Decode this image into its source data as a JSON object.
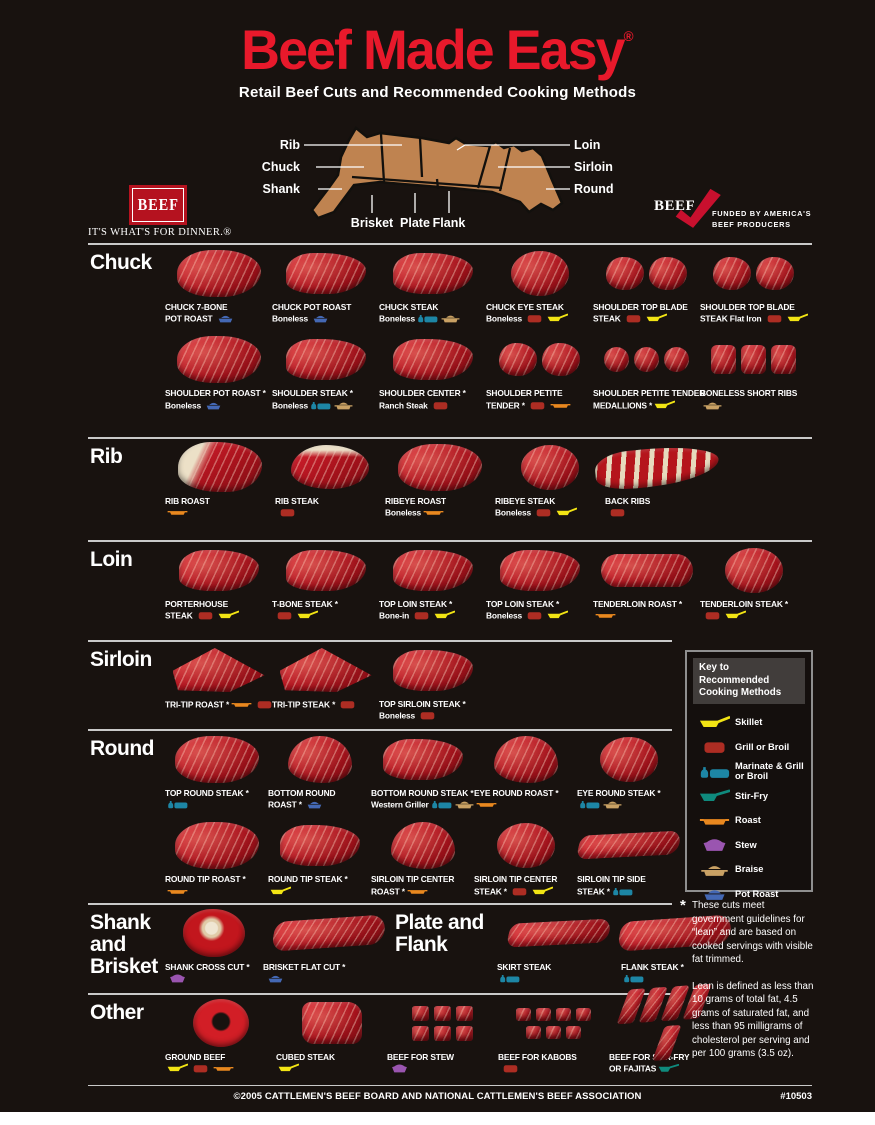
{
  "title": {
    "text": "Beef Made Easy",
    "reg": "®",
    "subtitle": "Retail Beef Cuts and Recommended Cooking Methods"
  },
  "logo_left": {
    "box": "BEEF",
    "tagline": "IT'S WHAT'S FOR DINNER.®"
  },
  "logo_right": {
    "word": "BEEF",
    "line1": "FUNDED BY AMERICA'S",
    "line2": "BEEF PRODUCERS"
  },
  "diagram": {
    "left": [
      "Rib",
      "Chuck",
      "Shank"
    ],
    "right": [
      "Loin",
      "Sirloin",
      "Round"
    ],
    "bottom": [
      "Brisket",
      "Plate",
      "Flank"
    ],
    "body_color": "#bf8350"
  },
  "legend": {
    "title": "Key to Recommended Cooking Methods",
    "items": [
      {
        "id": "skillet",
        "label": "Skillet",
        "color": "#f2e414"
      },
      {
        "id": "grill",
        "label": "Grill or Broil",
        "color": "#ad2d23"
      },
      {
        "id": "marinate",
        "label": "Marinate & Grill or Broil",
        "color": "#1d86a5"
      },
      {
        "id": "stirfry",
        "label": "Stir-Fry",
        "color": "#0f8a7d"
      },
      {
        "id": "roast",
        "label": "Roast",
        "color": "#e9881f"
      },
      {
        "id": "stew",
        "label": "Stew",
        "color": "#9a55b0"
      },
      {
        "id": "braise",
        "label": "Braise",
        "color": "#c9a164"
      },
      {
        "id": "potroast",
        "label": "Pot Roast",
        "color": "#4468b4"
      }
    ]
  },
  "sections": [
    {
      "id": "chuck",
      "title": "Chuck",
      "rows": [
        [
          {
            "lines": [
              "CHUCK 7-BONE",
              "POT ROAST"
            ],
            "img": "roast",
            "methods": [
              "potroast"
            ]
          },
          {
            "lines": [
              "CHUCK POT ROAST",
              "Boneless"
            ],
            "img": "steak",
            "methods": [
              "potroast"
            ]
          },
          {
            "lines": [
              "CHUCK STEAK",
              "Boneless"
            ],
            "img": "steak",
            "methods": [
              "marinate",
              "braise"
            ]
          },
          {
            "lines": [
              "CHUCK EYE STEAK",
              "Boneless"
            ],
            "img": "round",
            "methods": [
              "grill",
              "skillet"
            ]
          },
          {
            "lines": [
              "SHOULDER TOP BLADE",
              "STEAK"
            ],
            "img": "twin",
            "methods": [
              "grill",
              "skillet"
            ]
          },
          {
            "lines": [
              "SHOULDER TOP BLADE",
              "STEAK  Flat Iron"
            ],
            "img": "twin",
            "methods": [
              "grill",
              "skillet"
            ]
          }
        ],
        [
          {
            "lines": [
              "SHOULDER POT ROAST *",
              "Boneless"
            ],
            "img": "roast",
            "methods": [
              "potroast"
            ]
          },
          {
            "lines": [
              "SHOULDER STEAK *",
              "Boneless"
            ],
            "img": "steak",
            "methods": [
              "marinate",
              "braise"
            ]
          },
          {
            "lines": [
              "SHOULDER CENTER *",
              "Ranch Steak"
            ],
            "img": "steak",
            "methods": [
              "grill"
            ]
          },
          {
            "lines": [
              "SHOULDER PETITE",
              "TENDER *"
            ],
            "img": "twin",
            "methods": [
              "grill",
              "roast"
            ]
          },
          {
            "lines": [
              "SHOULDER PETITE TENDER",
              "MEDALLIONS *"
            ],
            "img": "medallions",
            "methods": [
              "skillet"
            ]
          },
          {
            "lines": [
              "BONELESS SHORT RIBS",
              ""
            ],
            "img": "shortribs",
            "methods": [
              "braise"
            ]
          }
        ]
      ]
    },
    {
      "id": "rib",
      "title": "Rib",
      "rows": [
        [
          {
            "lines": [
              "RIB ROAST",
              ""
            ],
            "img": "fatroast",
            "methods": [
              "roast"
            ]
          },
          {
            "lines": [
              "RIB STEAK",
              ""
            ],
            "img": "ribsteak",
            "methods": [
              "grill"
            ]
          },
          {
            "lines": [
              "RIBEYE ROAST",
              "Boneless"
            ],
            "img": "roast",
            "methods": [
              "roast"
            ]
          },
          {
            "lines": [
              "RIBEYE STEAK",
              "Boneless"
            ],
            "img": "round",
            "methods": [
              "grill",
              "skillet"
            ]
          },
          {
            "lines": [
              "BACK RIBS",
              ""
            ],
            "img": "backribs",
            "methods": [
              "grill"
            ]
          }
        ]
      ]
    },
    {
      "id": "loin",
      "title": "Loin",
      "rows": [
        [
          {
            "lines": [
              "PORTERHOUSE",
              "STEAK"
            ],
            "img": "steak",
            "methods": [
              "grill",
              "skillet"
            ]
          },
          {
            "lines": [
              "T-BONE STEAK *",
              ""
            ],
            "img": "steak",
            "methods": [
              "grill",
              "skillet"
            ]
          },
          {
            "lines": [
              "TOP LOIN STEAK *",
              "Bone-in"
            ],
            "img": "steak",
            "methods": [
              "grill",
              "skillet"
            ]
          },
          {
            "lines": [
              "TOP LOIN STEAK *",
              "Boneless"
            ],
            "img": "steak",
            "methods": [
              "grill",
              "skillet"
            ]
          },
          {
            "lines": [
              "TENDERLOIN ROAST *",
              ""
            ],
            "img": "log",
            "methods": [
              "roast"
            ]
          },
          {
            "lines": [
              "TENDERLOIN STEAK *",
              ""
            ],
            "img": "round",
            "methods": [
              "grill",
              "skillet"
            ]
          }
        ]
      ]
    },
    {
      "id": "sirloin",
      "title": "Sirloin",
      "rows": [
        [
          {
            "lines": [
              "TRI-TIP ROAST *"
            ],
            "img": "tri",
            "methods": [
              "roast",
              "grill"
            ]
          },
          {
            "lines": [
              "TRI-TIP STEAK *"
            ],
            "img": "tri",
            "methods": [
              "grill"
            ]
          },
          {
            "lines": [
              "TOP SIRLOIN STEAK *",
              "Boneless"
            ],
            "img": "steak",
            "methods": [
              "grill"
            ]
          }
        ]
      ]
    },
    {
      "id": "round",
      "title": "Round",
      "rows": [
        [
          {
            "lines": [
              "TOP ROUND STEAK *",
              ""
            ],
            "img": "roast",
            "methods": [
              "marinate"
            ]
          },
          {
            "lines": [
              "BOTTOM ROUND",
              "ROAST *"
            ],
            "img": "domeroast",
            "methods": [
              "potroast"
            ]
          },
          {
            "lines": [
              "BOTTOM ROUND STEAK *",
              "Western Griller"
            ],
            "img": "steak",
            "methods": [
              "marinate",
              "braise"
            ]
          },
          {
            "lines": [
              "EYE ROUND ROAST *",
              ""
            ],
            "img": "domeroast",
            "methods": [
              "roast"
            ]
          },
          {
            "lines": [
              "EYE ROUND STEAK *",
              ""
            ],
            "img": "round",
            "methods": [
              "marinate",
              "braise"
            ]
          }
        ],
        [
          {
            "lines": [
              "ROUND TIP ROAST *",
              ""
            ],
            "img": "roast",
            "methods": [
              "roast"
            ]
          },
          {
            "lines": [
              "ROUND TIP STEAK *",
              ""
            ],
            "img": "steak",
            "methods": [
              "skillet"
            ]
          },
          {
            "lines": [
              "SIRLOIN TIP CENTER",
              "ROAST *"
            ],
            "img": "domeroast",
            "methods": [
              "roast"
            ]
          },
          {
            "lines": [
              "SIRLOIN TIP CENTER",
              "STEAK *"
            ],
            "img": "round",
            "methods": [
              "grill",
              "skillet"
            ]
          },
          {
            "lines": [
              "SIRLOIN TIP SIDE",
              "STEAK *"
            ],
            "img": "slabthin",
            "methods": [
              "marinate"
            ]
          }
        ]
      ]
    },
    {
      "id": "shank",
      "title": "Shank and Brisket",
      "rows": [
        [
          {
            "lines": [
              "SHANK CROSS CUT *",
              ""
            ],
            "img": "shank",
            "methods": [
              "stew"
            ]
          },
          {
            "lines": [
              "BRISKET FLAT CUT *",
              ""
            ],
            "img": "slab",
            "methods": [
              "potroast"
            ]
          },
          {
            "heading": "Plate and Flank"
          },
          {
            "lines": [
              "SKIRT STEAK",
              ""
            ],
            "img": "slabthin",
            "methods": [
              "marinate"
            ]
          },
          {
            "lines": [
              "FLANK STEAK *",
              ""
            ],
            "img": "slab",
            "methods": [
              "marinate"
            ]
          }
        ]
      ]
    },
    {
      "id": "other",
      "title": "Other",
      "rows": [
        [
          {
            "lines": [
              "GROUND BEEF",
              ""
            ],
            "img": "ring",
            "methods": [
              "skillet",
              "grill",
              "roast"
            ]
          },
          {
            "lines": [
              "CUBED STEAK",
              ""
            ],
            "img": "cuberough",
            "methods": [
              "skillet"
            ]
          },
          {
            "lines": [
              "BEEF FOR STEW",
              ""
            ],
            "img": "cubes",
            "methods": [
              "stew"
            ]
          },
          {
            "lines": [
              "BEEF FOR KABOBS",
              ""
            ],
            "img": "kabobs",
            "methods": [
              "grill"
            ]
          },
          {
            "lines": [
              "BEEF FOR STIR-FRY",
              "OR FAJITAS"
            ],
            "img": "strips",
            "methods": [
              "stirfry"
            ]
          }
        ]
      ]
    }
  ],
  "footnote": {
    "star": "*",
    "para1": "These cuts meet government guidelines for “lean” and are based on cooked servings with visible fat trimmed.",
    "para2": "Lean is defined as less than 10 grams of total fat, 4.5 grams of saturated fat, and less than 95 milligrams of cholesterol per serving and per 100 grams (3.5 oz)."
  },
  "footer": {
    "copyright": "©2005 CATTLEMEN'S BEEF BOARD AND NATIONAL CATTLEMEN'S BEEF ASSOCIATION",
    "number": "#10503"
  }
}
